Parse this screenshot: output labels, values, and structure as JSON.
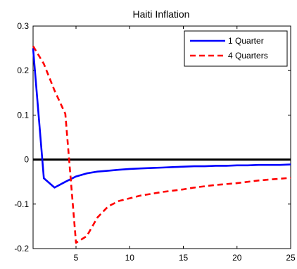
{
  "chart_data": {
    "type": "line",
    "title": "Haiti Inflation",
    "xlabel": "",
    "ylabel": "",
    "xlim": [
      1,
      25
    ],
    "ylim": [
      -0.2,
      0.3
    ],
    "xticks": [
      5,
      10,
      15,
      20,
      25
    ],
    "yticks": [
      -0.2,
      -0.1,
      0,
      0.1,
      0.2,
      0.3
    ],
    "ytick_labels": [
      "-0.2",
      "-0.1",
      "0",
      "0.1",
      "0.2",
      "0.3"
    ],
    "xtick_labels": [
      "5",
      "10",
      "15",
      "20",
      "25"
    ],
    "grid": false,
    "legend_position": "top-right",
    "zero_line": true,
    "x": [
      1,
      2,
      3,
      4,
      5,
      6,
      7,
      8,
      9,
      10,
      11,
      12,
      13,
      14,
      15,
      16,
      17,
      18,
      19,
      20,
      21,
      22,
      23,
      24,
      25
    ],
    "series": [
      {
        "name": "1 Quarter",
        "color": "#0000ff",
        "style": "solid",
        "values": [
          0.25,
          -0.042,
          -0.063,
          -0.05,
          -0.038,
          -0.031,
          -0.027,
          -0.025,
          -0.023,
          -0.021,
          -0.02,
          -0.019,
          -0.018,
          -0.017,
          -0.016,
          -0.015,
          -0.015,
          -0.014,
          -0.014,
          -0.013,
          -0.013,
          -0.012,
          -0.012,
          -0.012,
          -0.011
        ]
      },
      {
        "name": "4 Quarters",
        "color": "#ff0000",
        "style": "dashed",
        "values": [
          0.255,
          0.215,
          0.155,
          0.103,
          -0.187,
          -0.172,
          -0.13,
          -0.105,
          -0.093,
          -0.087,
          -0.081,
          -0.077,
          -0.073,
          -0.07,
          -0.067,
          -0.063,
          -0.06,
          -0.057,
          -0.055,
          -0.053,
          -0.05,
          -0.047,
          -0.045,
          -0.043,
          -0.041
        ]
      }
    ]
  }
}
